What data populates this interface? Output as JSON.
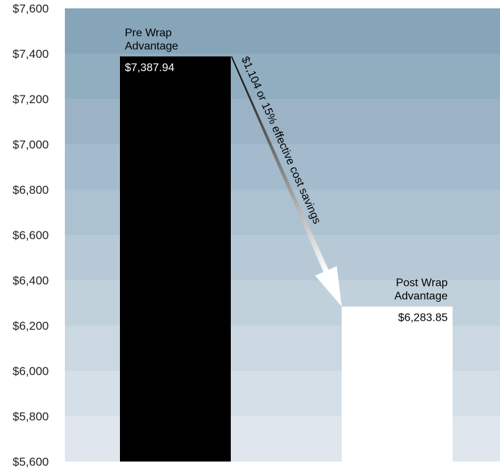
{
  "chart_data": {
    "type": "bar",
    "categories": [
      "Pre Wrap Advantage",
      "Post Wrap Advantage"
    ],
    "category_label_lines": [
      [
        "Pre Wrap",
        "Advantage"
      ],
      [
        "Post Wrap",
        "Advantage"
      ]
    ],
    "values": [
      7387.94,
      6283.85
    ],
    "value_labels": [
      "$7,387.94",
      "$6,283.85"
    ],
    "bar_colors": [
      "#000000",
      "#ffffff"
    ],
    "value_label_colors": [
      "#ffffff",
      "#000000"
    ],
    "title": "",
    "xlabel": "",
    "ylabel": "",
    "ylim": [
      5600,
      7600
    ],
    "yticks": [
      5600,
      5800,
      6000,
      6200,
      6400,
      6600,
      6800,
      7000,
      7200,
      7400,
      7600
    ],
    "ytick_labels": [
      "$5,600",
      "$5,800",
      "$6,000",
      "$6,200",
      "$6,400",
      "$6,600",
      "$6,800",
      "$7,000",
      "$7,200",
      "$7,400",
      "$7,600"
    ],
    "background_band_colors": [
      "#dfe6ed",
      "#d5dfe7",
      "#cbd8e1",
      "#c1d1dc",
      "#b7c9d6",
      "#adc2d1",
      "#a3bbcc",
      "#9cb3c6",
      "#91aec1",
      "#86a5b9"
    ],
    "annotation": "$1,104 or 15% effective cost savings",
    "legend": "none",
    "grid": false
  }
}
